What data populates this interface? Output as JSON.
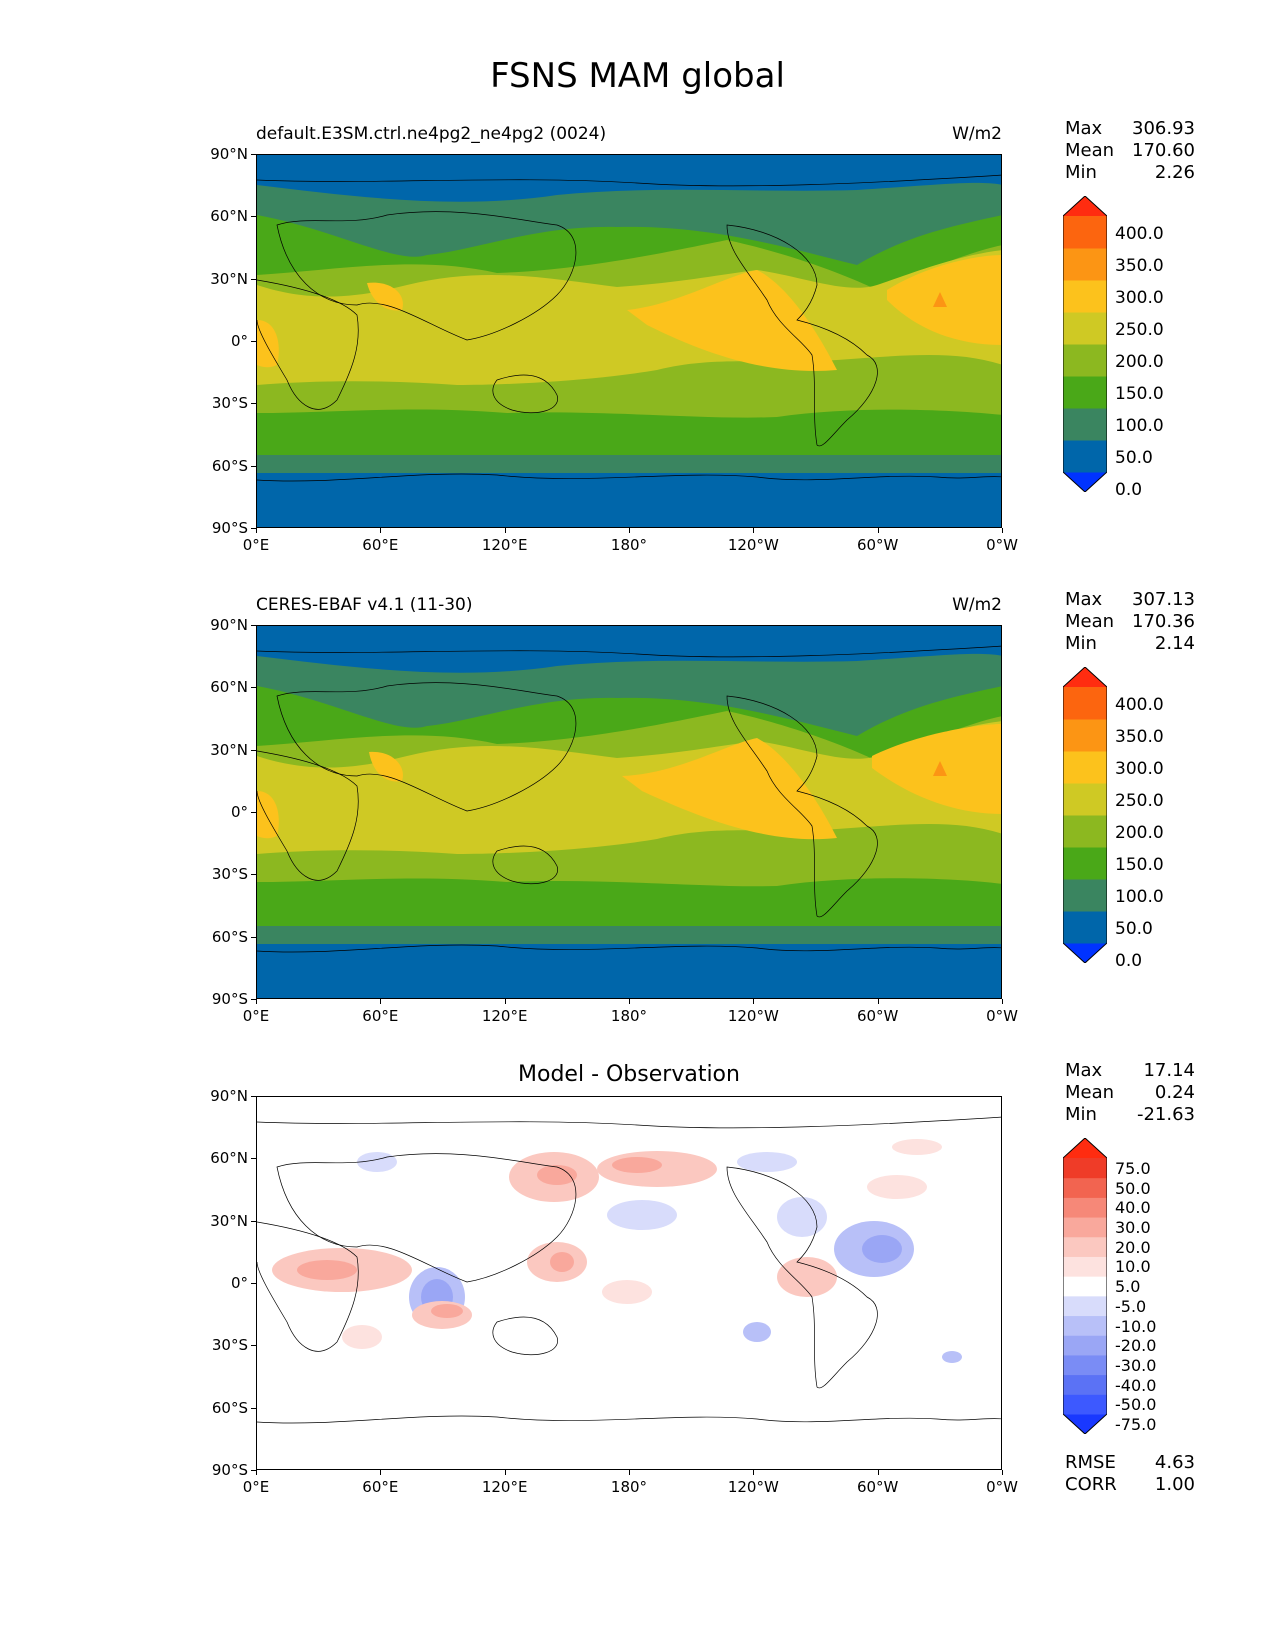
{
  "title": "FSNS MAM global",
  "units": "W/m2",
  "lat_labels": [
    "90°N",
    "60°N",
    "30°N",
    "0°",
    "30°S",
    "60°S",
    "90°S"
  ],
  "lon_labels": [
    "0°E",
    "60°E",
    "120°E",
    "180°",
    "120°W",
    "60°W",
    "0°W"
  ],
  "colors": {
    "abs": [
      "#0033ff",
      "#0066aa",
      "#3a8560",
      "#4aa818",
      "#8cb820",
      "#cfc924",
      "#fcc21c",
      "#fc9514",
      "#fc650f",
      "#ff2c10"
    ],
    "diff": [
      "#1938ff",
      "#3d59ff",
      "#5b72f5",
      "#7a8cf5",
      "#9aa6f5",
      "#b8c0f8",
      "#d8dcfb",
      "#ffffff",
      "#fde2df",
      "#fbc8c0",
      "#f9a89c",
      "#f68878",
      "#f26450",
      "#ef3c28",
      "#ff2c10"
    ],
    "coast": "#000000"
  },
  "panels": [
    {
      "left_title": "default.E3SM.ctrl.ne4pg2_ne4pg2 (0024)",
      "right_title": "W/m2",
      "center_title": "",
      "stats": [
        {
          "label": "Max",
          "value": "306.93"
        },
        {
          "label": "Mean",
          "value": "170.60"
        },
        {
          "label": "Min",
          "value": "2.26"
        }
      ],
      "colorbar_labels": [
        "400.0",
        "350.0",
        "300.0",
        "250.0",
        "200.0",
        "150.0",
        "100.0",
        "50.0",
        "0.0"
      ]
    },
    {
      "left_title": "CERES-EBAF v4.1 (11-30)",
      "right_title": "W/m2",
      "center_title": "",
      "stats": [
        {
          "label": "Max",
          "value": "307.13"
        },
        {
          "label": "Mean",
          "value": "170.36"
        },
        {
          "label": "Min",
          "value": "2.14"
        }
      ],
      "colorbar_labels": [
        "400.0",
        "350.0",
        "300.0",
        "250.0",
        "200.0",
        "150.0",
        "100.0",
        "50.0",
        "0.0"
      ]
    },
    {
      "left_title": "",
      "right_title": "",
      "center_title": "Model - Observation",
      "stats": [
        {
          "label": "Max",
          "value": "17.14"
        },
        {
          "label": "Mean",
          "value": "0.24"
        },
        {
          "label": "Min",
          "value": "-21.63"
        }
      ],
      "colorbar_labels": [
        "75.0",
        "50.0",
        "40.0",
        "30.0",
        "20.0",
        "10.0",
        "5.0",
        "-5.0",
        "-10.0",
        "-20.0",
        "-30.0",
        "-40.0",
        "-50.0",
        "-75.0"
      ],
      "metrics": [
        {
          "label": "RMSE",
          "value": "4.63"
        },
        {
          "label": "CORR",
          "value": "1.00"
        }
      ]
    }
  ]
}
